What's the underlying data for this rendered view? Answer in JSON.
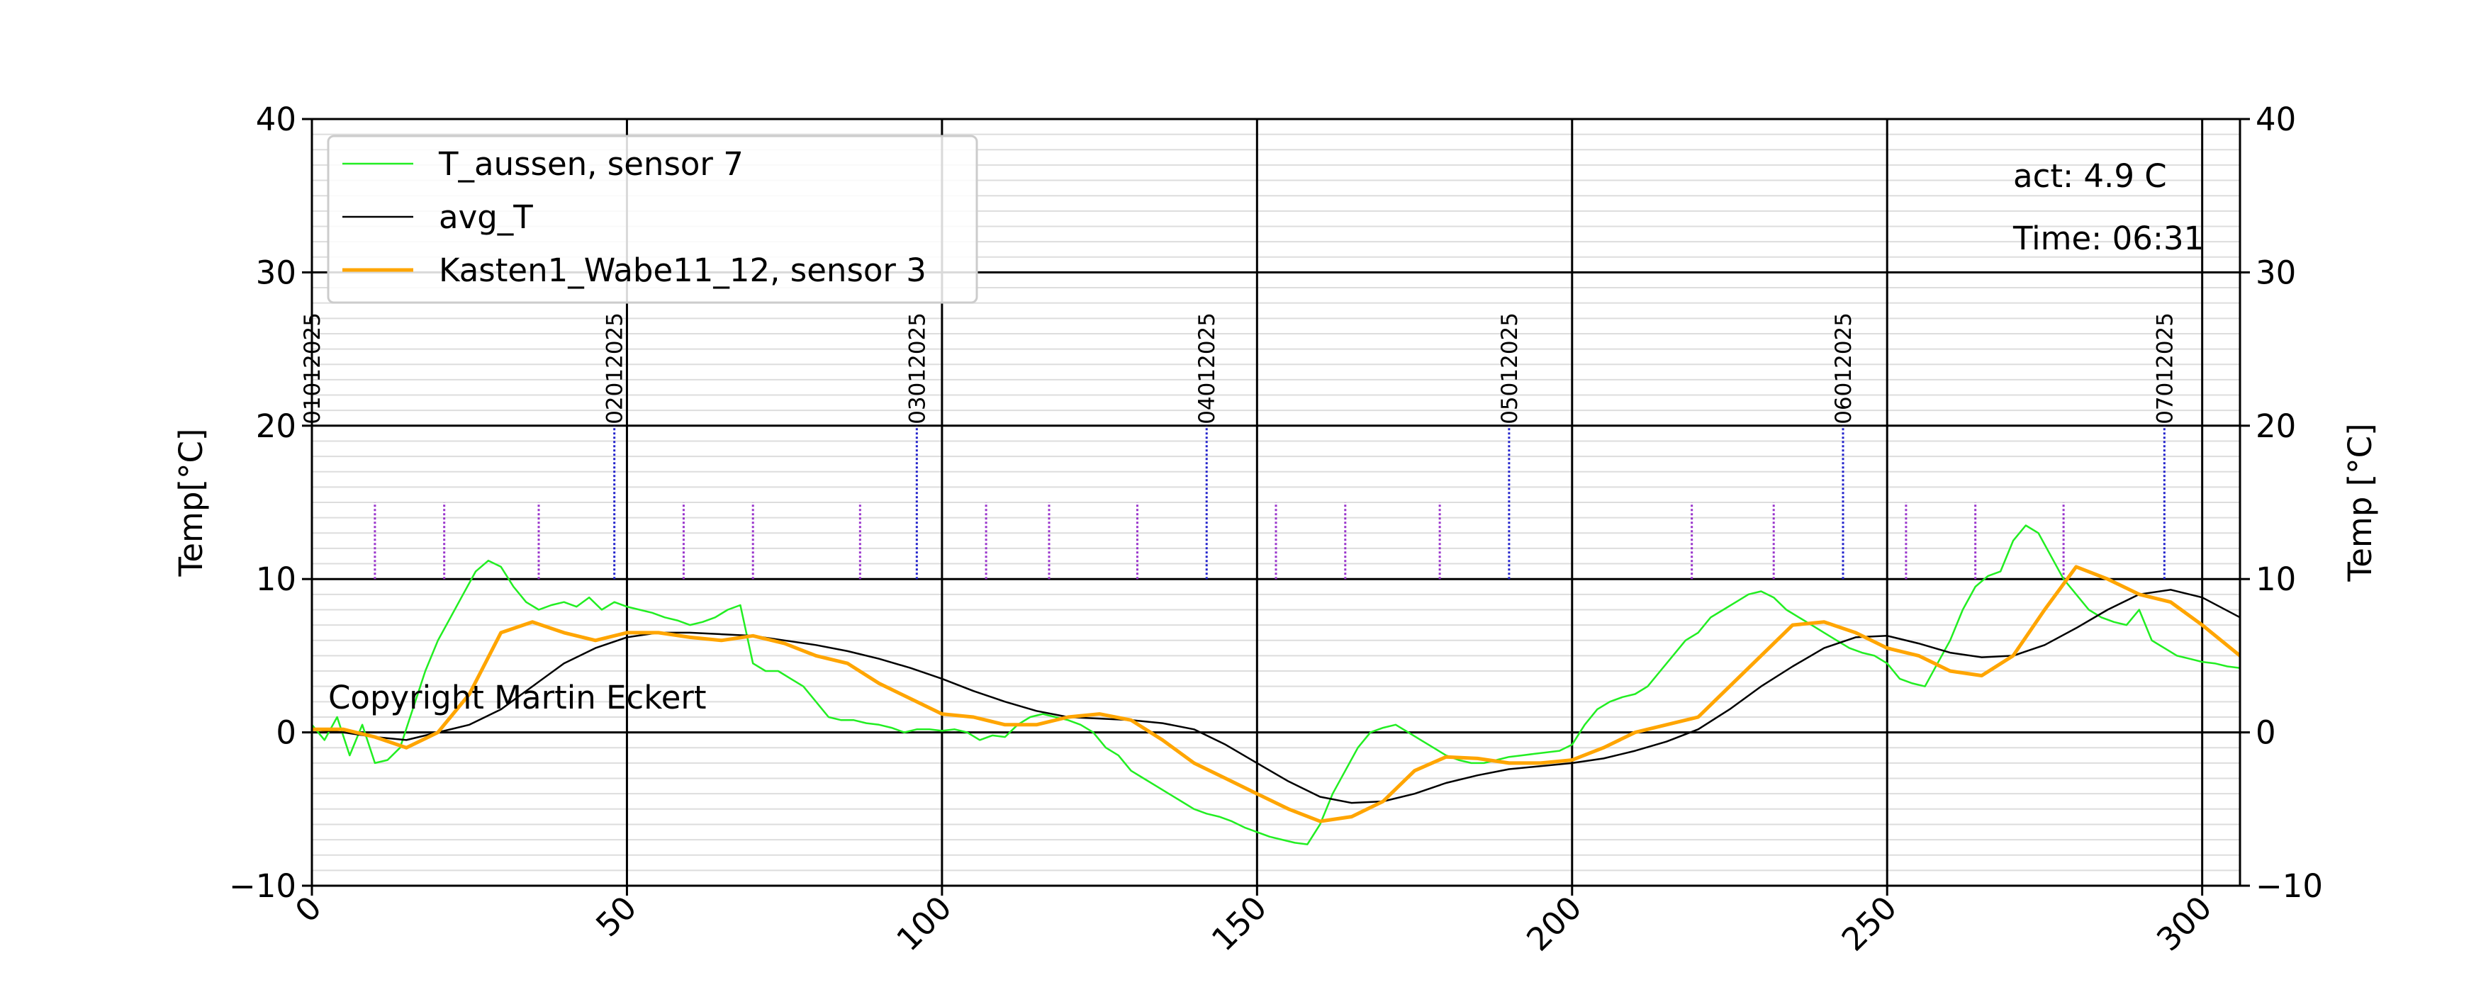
{
  "chart_data": {
    "type": "line",
    "title": "",
    "xlabel": "",
    "ylabel": "Temp[°C]",
    "ylabel_right": "Temp [°C]",
    "xlim": [
      0,
      306
    ],
    "ylim": [
      -10,
      40
    ],
    "x_ticks": [
      0,
      50,
      100,
      150,
      200,
      250,
      300
    ],
    "x_tick_labels": [
      "0",
      "50",
      "100",
      "150",
      "200",
      "250",
      "300"
    ],
    "y_ticks": [
      -10,
      0,
      10,
      20,
      30,
      40
    ],
    "y_tick_labels": [
      "−10",
      "0",
      "10",
      "20",
      "30",
      "40"
    ],
    "major_vlines": [
      0,
      50,
      100,
      150,
      200,
      250,
      300
    ],
    "minor_hlines_step": 1,
    "grid": true,
    "legend_position": "top-left",
    "series": [
      {
        "name": "T_aussen, sensor 7",
        "color": "#22ee22",
        "x": [
          0,
          2,
          4,
          6,
          8,
          10,
          12,
          14,
          16,
          18,
          20,
          22,
          24,
          26,
          28,
          30,
          32,
          34,
          36,
          38,
          40,
          42,
          44,
          46,
          48,
          50,
          52,
          54,
          56,
          58,
          60,
          62,
          64,
          66,
          68,
          70,
          72,
          74,
          76,
          78,
          80,
          82,
          84,
          86,
          88,
          90,
          92,
          94,
          96,
          98,
          100,
          102,
          104,
          106,
          108,
          110,
          112,
          114,
          116,
          118,
          120,
          122,
          124,
          126,
          128,
          130,
          132,
          134,
          136,
          138,
          140,
          142,
          144,
          146,
          148,
          150,
          152,
          154,
          156,
          158,
          160,
          162,
          164,
          166,
          168,
          170,
          172,
          174,
          176,
          178,
          180,
          182,
          184,
          186,
          188,
          190,
          192,
          194,
          196,
          198,
          200,
          202,
          204,
          206,
          208,
          210,
          212,
          214,
          216,
          218,
          220,
          222,
          224,
          226,
          228,
          230,
          232,
          234,
          236,
          238,
          240,
          242,
          244,
          246,
          248,
          250,
          252,
          254,
          256,
          258,
          260,
          262,
          264,
          266,
          268,
          270,
          272,
          274,
          276,
          278,
          280,
          282,
          284,
          286,
          288,
          290,
          292,
          294,
          296,
          298,
          300,
          302,
          304,
          306
        ],
        "values": [
          0.5,
          -0.5,
          1.0,
          -1.5,
          0.5,
          -2.0,
          -1.8,
          -1.0,
          1.5,
          4.0,
          6.0,
          7.5,
          9.0,
          10.5,
          11.2,
          10.8,
          9.5,
          8.5,
          8.0,
          8.3,
          8.5,
          8.2,
          8.8,
          8.0,
          8.5,
          8.2,
          8.0,
          7.8,
          7.5,
          7.3,
          7.0,
          7.2,
          7.5,
          8.0,
          8.3,
          4.5,
          4.0,
          4.0,
          3.5,
          3.0,
          2.0,
          1.0,
          0.8,
          0.8,
          0.6,
          0.5,
          0.3,
          0.0,
          0.2,
          0.2,
          0.1,
          0.2,
          0.0,
          -0.5,
          -0.2,
          -0.3,
          0.5,
          1.0,
          1.2,
          1.0,
          0.8,
          0.5,
          0.0,
          -1.0,
          -1.5,
          -2.5,
          -3.0,
          -3.5,
          -4.0,
          -4.5,
          -5.0,
          -5.3,
          -5.5,
          -5.8,
          -6.2,
          -6.5,
          -6.8,
          -7.0,
          -7.2,
          -7.3,
          -6.0,
          -4.0,
          -2.5,
          -1.0,
          0.0,
          0.3,
          0.5,
          0.0,
          -0.5,
          -1.0,
          -1.5,
          -1.8,
          -2.0,
          -2.0,
          -1.8,
          -1.6,
          -1.5,
          -1.4,
          -1.3,
          -1.2,
          -0.8,
          0.5,
          1.5,
          2.0,
          2.3,
          2.5,
          3.0,
          4.0,
          5.0,
          6.0,
          6.5,
          7.5,
          8.0,
          8.5,
          9.0,
          9.2,
          8.8,
          8.0,
          7.5,
          7.0,
          6.5,
          6.0,
          5.5,
          5.2,
          5.0,
          4.5,
          3.5,
          3.2,
          3.0,
          4.5,
          6.0,
          8.0,
          9.5,
          10.2,
          10.5,
          12.5,
          13.5,
          13.0,
          11.5,
          10.0,
          9.0,
          8.0,
          7.5,
          7.2,
          7.0,
          8.0,
          6.0,
          5.5,
          5.0,
          4.8,
          4.6,
          4.5,
          4.3,
          4.2
        ]
      },
      {
        "name": "avg_T",
        "color": "#000000",
        "x": [
          0,
          5,
          10,
          15,
          20,
          25,
          30,
          35,
          40,
          45,
          50,
          55,
          60,
          65,
          70,
          75,
          80,
          85,
          90,
          95,
          100,
          105,
          110,
          115,
          120,
          125,
          130,
          135,
          140,
          145,
          150,
          155,
          160,
          165,
          170,
          175,
          180,
          185,
          190,
          195,
          200,
          205,
          210,
          215,
          220,
          225,
          230,
          235,
          240,
          245,
          250,
          255,
          260,
          265,
          270,
          275,
          280,
          285,
          290,
          295,
          300,
          306
        ],
        "values": [
          0.2,
          0.0,
          -0.3,
          -0.5,
          0.0,
          0.5,
          1.5,
          3.0,
          4.5,
          5.5,
          6.2,
          6.5,
          6.5,
          6.4,
          6.3,
          6.0,
          5.7,
          5.3,
          4.8,
          4.2,
          3.5,
          2.7,
          2.0,
          1.4,
          1.0,
          0.9,
          0.8,
          0.6,
          0.2,
          -0.8,
          -2.0,
          -3.2,
          -4.2,
          -4.6,
          -4.5,
          -4.0,
          -3.3,
          -2.8,
          -2.4,
          -2.2,
          -2.0,
          -1.7,
          -1.2,
          -0.6,
          0.2,
          1.5,
          3.0,
          4.3,
          5.5,
          6.2,
          6.3,
          5.8,
          5.2,
          4.9,
          5.0,
          5.7,
          6.8,
          8.0,
          9.0,
          9.3,
          8.8,
          7.5
        ]
      },
      {
        "name": "Kasten1_Wabe11_12, sensor 3",
        "color": "#ffa500",
        "x": [
          0,
          5,
          10,
          15,
          20,
          25,
          30,
          35,
          40,
          45,
          50,
          55,
          60,
          65,
          70,
          75,
          80,
          85,
          90,
          95,
          100,
          105,
          110,
          115,
          120,
          125,
          130,
          135,
          140,
          145,
          150,
          155,
          160,
          165,
          170,
          175,
          180,
          185,
          190,
          195,
          200,
          205,
          210,
          215,
          220,
          225,
          230,
          235,
          240,
          245,
          250,
          255,
          260,
          265,
          270,
          275,
          280,
          285,
          290,
          295,
          300,
          306
        ],
        "values": [
          0.2,
          0.2,
          -0.3,
          -1.0,
          0.0,
          2.5,
          6.5,
          7.2,
          6.5,
          6.0,
          6.5,
          6.5,
          6.2,
          6.0,
          6.3,
          5.8,
          5.0,
          4.5,
          3.2,
          2.2,
          1.2,
          1.0,
          0.5,
          0.5,
          1.0,
          1.2,
          0.8,
          -0.5,
          -2.0,
          -3.0,
          -4.0,
          -5.0,
          -5.8,
          -5.5,
          -4.5,
          -2.5,
          -1.6,
          -1.7,
          -2.0,
          -2.0,
          -1.8,
          -1.0,
          0.0,
          0.5,
          1.0,
          3.0,
          5.0,
          7.0,
          7.2,
          6.5,
          5.5,
          5.0,
          4.0,
          3.7,
          5.0,
          8.0,
          10.8,
          10.0,
          9.0,
          8.5,
          7.0,
          5.0
        ]
      }
    ],
    "date_markers": [
      {
        "x": 0,
        "label": "01012025"
      },
      {
        "x": 48,
        "label": "02012025"
      },
      {
        "x": 96,
        "label": "03012025"
      },
      {
        "x": 142,
        "label": "04012025"
      },
      {
        "x": 190,
        "label": "05012025"
      },
      {
        "x": 243,
        "label": "06012025"
      },
      {
        "x": 294,
        "label": "07012025"
      }
    ],
    "date_marker_range": [
      10,
      20
    ],
    "intra_day_markers": [
      10,
      21,
      36,
      59,
      70,
      87,
      107,
      117,
      131,
      153,
      164,
      179,
      219,
      232,
      253,
      264,
      278
    ],
    "intra_day_marker_range": [
      10,
      15
    ],
    "annotations": {
      "act": "act: 4.9 C",
      "time": "Time: 06:31",
      "copyright": "Copyright Martin Eckert"
    }
  }
}
